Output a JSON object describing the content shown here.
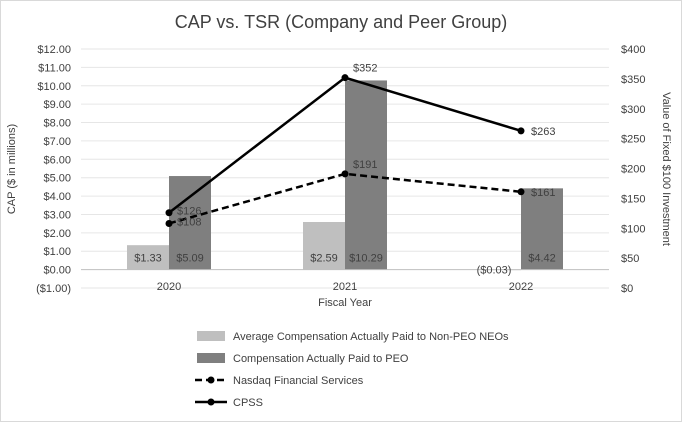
{
  "chart_data": {
    "type": "bar",
    "title": "CAP vs. TSR (Company and Peer Group)",
    "categories": [
      "2020",
      "2021",
      "2022"
    ],
    "xlabel": "Fiscal Year",
    "ylabel": "CAP ($ in millions)",
    "y2label": "Value of Fixed $100 Investment",
    "ylim": [
      -1,
      12
    ],
    "y2lim": [
      0,
      400
    ],
    "yticks": [
      "($1.00)",
      "$0.00",
      "$1.00",
      "$2.00",
      "$3.00",
      "$4.00",
      "$5.00",
      "$6.00",
      "$7.00",
      "$8.00",
      "$9.00",
      "$10.00",
      "$11.00",
      "$12.00"
    ],
    "y2ticks": [
      "$0",
      "$50",
      "$100",
      "$150",
      "$200",
      "$250",
      "$300",
      "$350",
      "$400"
    ],
    "series": [
      {
        "name": "Average Compensation Actually Paid to Non-PEO NEOs",
        "kind": "bar",
        "axis": "left",
        "color": "#bfbfbf",
        "values": [
          1.33,
          2.59,
          -0.03
        ],
        "labels": [
          "$1.33",
          "$2.59",
          "($0.03)"
        ]
      },
      {
        "name": "Compensation Actually Paid to PEO",
        "kind": "bar",
        "axis": "left",
        "color": "#7f7f7f",
        "values": [
          5.09,
          10.29,
          4.42
        ],
        "labels": [
          "$5.09",
          "$10.29",
          "$4.42"
        ]
      },
      {
        "name": "Nasdaq Financial Services",
        "kind": "line",
        "axis": "right",
        "color": "#000000",
        "dash": true,
        "values": [
          108,
          191,
          161
        ],
        "labels": [
          "$108",
          "$191",
          "$161"
        ]
      },
      {
        "name": "CPSS",
        "kind": "line",
        "axis": "right",
        "color": "#000000",
        "dash": false,
        "values": [
          126,
          352,
          263
        ],
        "labels": [
          "$126",
          "$352",
          "$263"
        ]
      }
    ]
  }
}
